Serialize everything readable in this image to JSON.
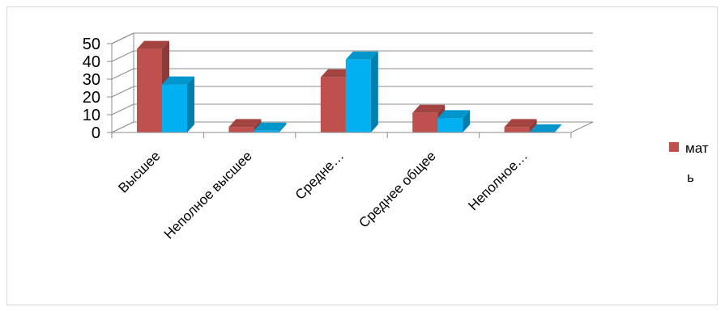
{
  "chart_data": {
    "type": "bar",
    "title": "",
    "xlabel": "",
    "ylabel": "",
    "categories": [
      "Высшее",
      "Неполное высшее",
      "Средне…",
      "Среднее общее",
      "Неполное…"
    ],
    "series": [
      {
        "name": "мать",
        "values": [
          47,
          3,
          31,
          11,
          3
        ],
        "color": "#C0504D"
      },
      {
        "values": [
          27,
          1,
          41,
          8,
          0
        ],
        "color": "#00B0F0"
      }
    ],
    "ylim": [
      0,
      50
    ],
    "yticks": [
      0,
      10,
      20,
      30,
      40,
      50
    ],
    "grid": true,
    "legend_position": "right",
    "legend_lines": [
      "мат",
      "ь"
    ]
  }
}
